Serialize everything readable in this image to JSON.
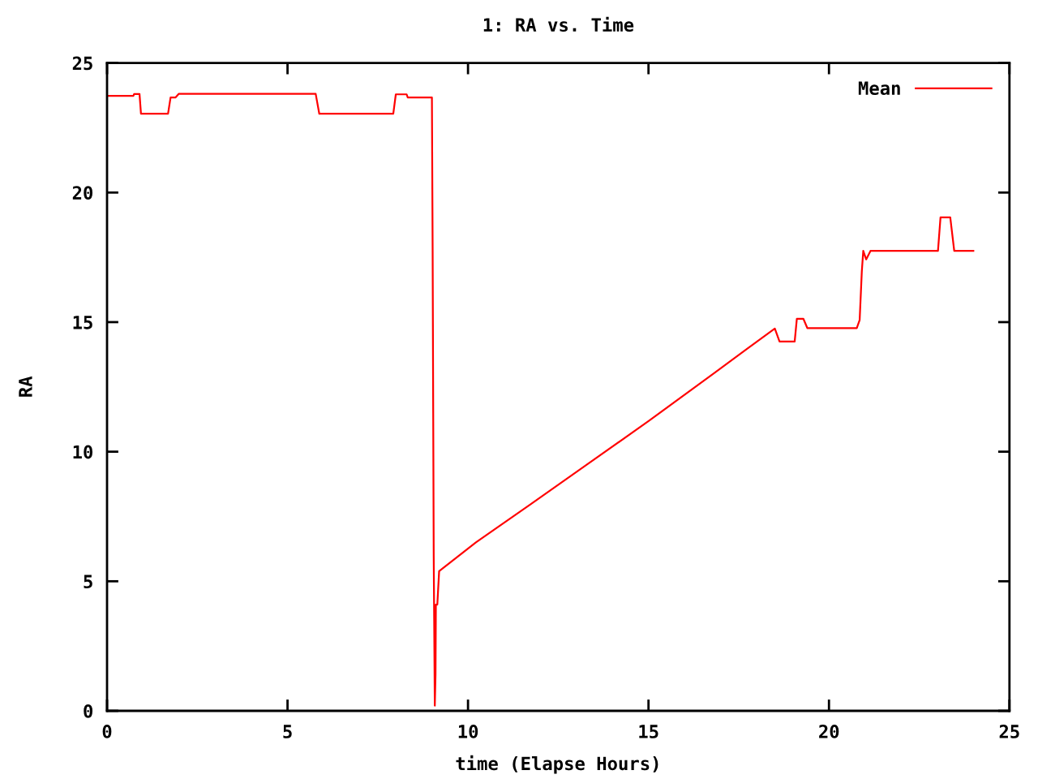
{
  "chart_data": {
    "type": "line",
    "title": "1: RA vs. Time",
    "xlabel": "time (Elapse Hours)",
    "ylabel": "RA",
    "x": [
      0.0,
      0.73,
      0.75,
      0.9,
      0.94,
      1.69,
      1.76,
      1.9,
      1.99,
      5.78,
      5.88,
      7.93,
      8.0,
      8.3,
      8.33,
      9.0,
      9.02,
      9.05,
      9.08,
      9.1,
      9.11,
      9.15,
      9.2,
      10.22,
      11.72,
      13.21,
      15.01,
      16.81,
      17.7,
      18.5,
      18.63,
      19.05,
      19.11,
      19.29,
      19.4,
      20.77,
      20.85,
      20.91,
      20.95,
      21.03,
      21.15,
      23.02,
      23.09,
      23.36,
      23.47,
      24.0
    ],
    "series": [
      {
        "name": "Mean",
        "color": "#ff0000",
        "values": [
          23.73,
          23.73,
          23.8,
          23.8,
          23.04,
          23.04,
          23.67,
          23.67,
          23.81,
          23.81,
          23.04,
          23.04,
          23.79,
          23.79,
          23.67,
          23.67,
          17.8,
          6.0,
          0.2,
          1.4,
          4.1,
          4.1,
          5.39,
          6.5,
          7.96,
          9.42,
          11.19,
          13.02,
          13.94,
          14.75,
          14.25,
          14.25,
          15.13,
          15.13,
          14.77,
          14.77,
          15.08,
          16.96,
          17.75,
          17.42,
          17.75,
          17.75,
          19.04,
          19.04,
          17.75,
          17.75
        ]
      }
    ],
    "xlim": [
      0,
      25
    ],
    "ylim": [
      0,
      25
    ],
    "xticks": [
      0,
      5,
      10,
      15,
      20,
      25
    ],
    "yticks": [
      0,
      5,
      10,
      15,
      20,
      25
    ],
    "legend": "top right"
  }
}
